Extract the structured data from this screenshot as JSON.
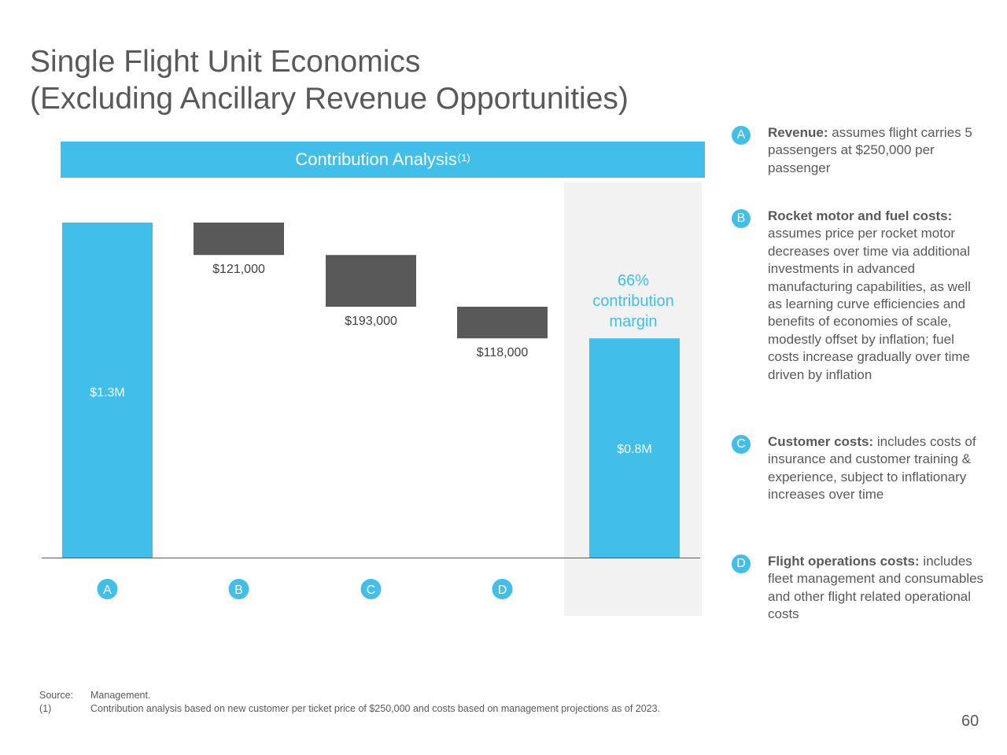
{
  "title": {
    "line1": "Single Flight Unit Economics",
    "line2": "(Excluding Ancillary Revenue Opportunities)"
  },
  "chart_header": {
    "label": "Contribution Analysis",
    "superscript": "(1)"
  },
  "chart_data": {
    "type": "bar",
    "subtype": "waterfall",
    "title": "Contribution Analysis",
    "categories": [
      "A",
      "B",
      "C",
      "D",
      ""
    ],
    "bars": [
      {
        "category": "A",
        "kind": "total",
        "value": 1250000,
        "label": "$1.3M",
        "color": "#41bfe8"
      },
      {
        "category": "B",
        "kind": "decrease",
        "value": 121000,
        "label": "$121,000",
        "color": "#595959"
      },
      {
        "category": "C",
        "kind": "decrease",
        "value": 193000,
        "label": "$193,000",
        "color": "#595959"
      },
      {
        "category": "D",
        "kind": "decrease",
        "value": 118000,
        "label": "$118,000",
        "color": "#595959"
      },
      {
        "category": "",
        "kind": "total",
        "value": 818000,
        "label": "$0.8M",
        "color": "#41bfe8"
      }
    ],
    "annotation": [
      "66%",
      "contribution",
      "margin"
    ],
    "ylim": [
      0,
      1250000
    ],
    "grid": false,
    "legend": "right",
    "colors": {
      "total": "#41bfe8",
      "decrease": "#595959",
      "highlight_bg": "#f2f2f2",
      "axis": "#595959"
    }
  },
  "legend": {
    "items": [
      {
        "badge": "A",
        "bold": "Revenue:",
        "text": " assumes flight carries 5 passengers at $250,000 per passenger"
      },
      {
        "badge": "B",
        "bold": "Rocket motor and fuel costs:",
        "text": " assumes price per rocket motor decreases over time via additional investments in advanced manufacturing capabilities, as well as learning curve efficiencies and benefits of economies of scale, modestly offset by inflation; fuel costs increase gradually over time driven by inflation"
      },
      {
        "badge": "C",
        "bold": "Customer costs:",
        "text": " includes costs of insurance and customer training & experience, subject to inflationary increases over time"
      },
      {
        "badge": "D",
        "bold": "Flight operations costs:",
        "text": " includes fleet management and consumables and other flight related operational costs"
      }
    ]
  },
  "footnotes": [
    {
      "label": "Source:",
      "text": "Management."
    },
    {
      "label": "(1)",
      "text": "Contribution analysis based on new customer per ticket price of $250,000 and costs based on management projections as of 2023."
    }
  ],
  "page_number": "60"
}
